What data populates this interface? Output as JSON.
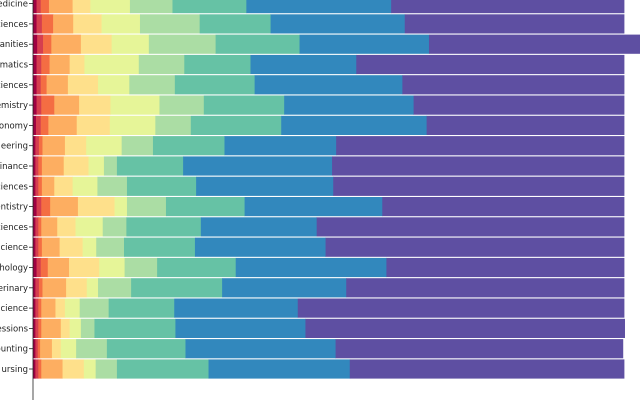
{
  "chart_data": {
    "type": "bar",
    "orientation": "horizontal",
    "stacked": true,
    "xlim": [
      0,
      1
    ],
    "grid": false,
    "legend": "none",
    "categories": [
      "edicine",
      "sciences",
      "anities",
      "ematics",
      "sciences",
      "emistry",
      "onomy",
      "eering",
      "inance",
      "sciences",
      "entistry",
      "sciences",
      "Science",
      "chology",
      "erinary",
      "Science",
      "essions",
      "ounting",
      "ursing"
    ],
    "segment_colors": [
      "#9e0142",
      "#d53e4f",
      "#f46d43",
      "#fdae61",
      "#fee08b",
      "#e6f598",
      "#abdda4",
      "#66c2a5",
      "#3288bd",
      "#5e4fa2"
    ],
    "series": [
      {
        "values": [
          0.006,
          0.006,
          0.007,
          0.006,
          0.006,
          0.006,
          0.005,
          0.004,
          0.004,
          0.004,
          0.006,
          0.004,
          0.004,
          0.006,
          0.004,
          0.004,
          0.004,
          0.004,
          0.004
        ]
      },
      {
        "values": [
          0.007,
          0.009,
          0.01,
          0.008,
          0.007,
          0.008,
          0.008,
          0.006,
          0.005,
          0.005,
          0.008,
          0.005,
          0.005,
          0.007,
          0.006,
          0.005,
          0.005,
          0.004,
          0.005
        ]
      },
      {
        "values": [
          0.014,
          0.019,
          0.014,
          0.014,
          0.01,
          0.022,
          0.013,
          0.006,
          0.006,
          0.006,
          0.015,
          0.005,
          0.006,
          0.012,
          0.006,
          0.005,
          0.005,
          0.004,
          0.005
        ]
      },
      {
        "values": [
          0.04,
          0.034,
          0.05,
          0.034,
          0.036,
          0.042,
          0.048,
          0.038,
          0.037,
          0.021,
          0.047,
          0.027,
          0.03,
          0.036,
          0.04,
          0.024,
          0.033,
          0.02,
          0.036
        ]
      },
      {
        "values": [
          0.03,
          0.048,
          0.052,
          0.025,
          0.051,
          0.053,
          0.056,
          0.036,
          0.042,
          0.031,
          0.062,
          0.031,
          0.039,
          0.051,
          0.035,
          0.016,
          0.015,
          0.015,
          0.036
        ]
      },
      {
        "values": [
          0.067,
          0.065,
          0.063,
          0.092,
          0.053,
          0.083,
          0.077,
          0.06,
          0.026,
          0.042,
          0.021,
          0.046,
          0.023,
          0.043,
          0.019,
          0.025,
          0.019,
          0.026,
          0.02
        ]
      },
      {
        "values": [
          0.072,
          0.101,
          0.113,
          0.077,
          0.077,
          0.075,
          0.06,
          0.053,
          0.022,
          0.05,
          0.066,
          0.04,
          0.047,
          0.055,
          0.056,
          0.049,
          0.023,
          0.052,
          0.036
        ]
      },
      {
        "values": [
          0.125,
          0.12,
          0.142,
          0.112,
          0.135,
          0.136,
          0.153,
          0.121,
          0.112,
          0.117,
          0.133,
          0.126,
          0.12,
          0.133,
          0.154,
          0.111,
          0.137,
          0.133,
          0.155
        ]
      },
      {
        "values": [
          0.245,
          0.227,
          0.219,
          0.179,
          0.25,
          0.219,
          0.246,
          0.189,
          0.252,
          0.232,
          0.233,
          0.196,
          0.221,
          0.255,
          0.21,
          0.209,
          0.22,
          0.254,
          0.239
        ]
      },
      {
        "values": [
          0.394,
          0.371,
          0.36,
          0.453,
          0.375,
          0.356,
          0.334,
          0.487,
          0.494,
          0.492,
          0.409,
          0.52,
          0.505,
          0.402,
          0.47,
          0.552,
          0.54,
          0.486,
          0.464
        ]
      }
    ]
  }
}
